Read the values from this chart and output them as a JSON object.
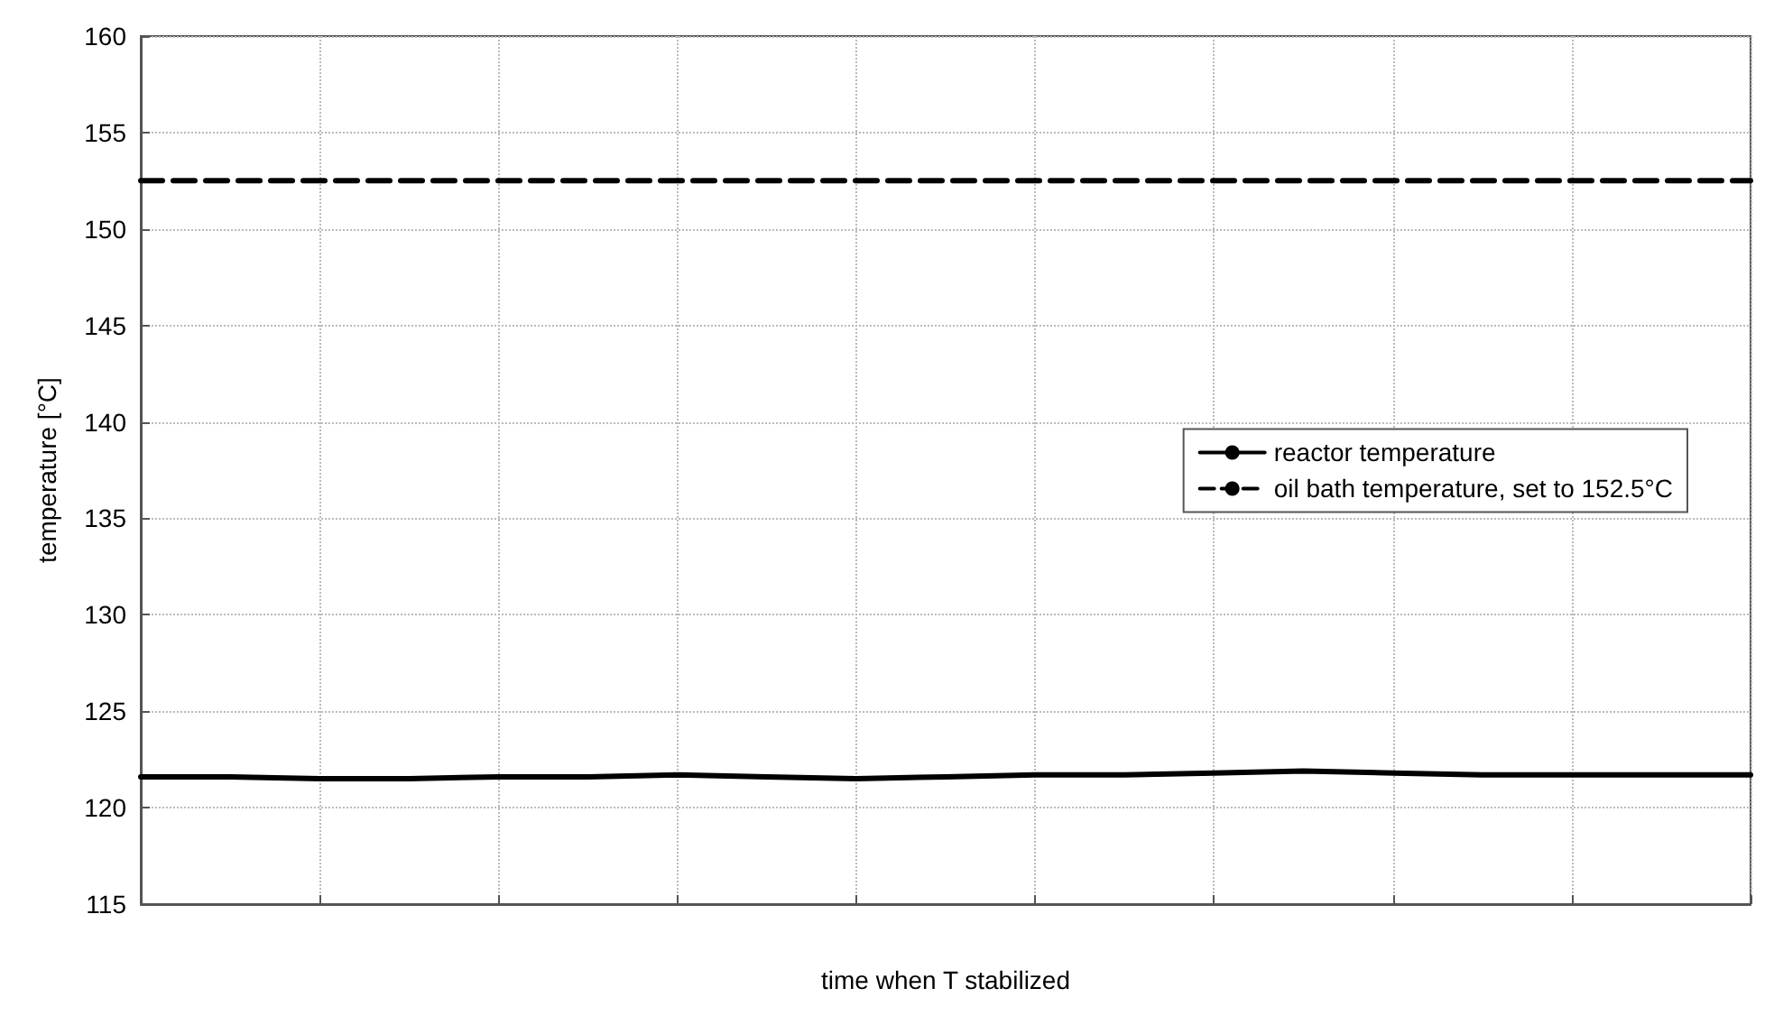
{
  "chart_data": {
    "type": "line",
    "xlabel": "time when T stabilized",
    "ylabel": "temperature [°C]",
    "categories": [
      null,
      null,
      null,
      null,
      null,
      null,
      null,
      null,
      null,
      null,
      null,
      null,
      null,
      null,
      null,
      null,
      null,
      null,
      null
    ],
    "ylim": [
      115,
      160
    ],
    "yticks": [
      115,
      120,
      125,
      130,
      135,
      140,
      145,
      150,
      155,
      160
    ],
    "tick_labels": "y",
    "grid": true,
    "legend": "right",
    "series": [
      {
        "name": "reactor temperature",
        "color": "#000000",
        "line_style": "solid",
        "values": [
          121.6,
          121.6,
          121.5,
          121.5,
          121.6,
          121.6,
          121.7,
          121.6,
          121.5,
          121.6,
          121.7,
          121.7,
          121.8,
          121.9,
          121.8,
          121.7,
          121.7,
          121.7,
          121.7
        ]
      },
      {
        "name": "oil bath temperature, set to 152.5°C",
        "color": "#000000",
        "line_style": "dashed",
        "values": [
          152.5,
          152.5,
          152.5,
          152.5,
          152.5,
          152.5,
          152.5,
          152.5,
          152.5,
          152.5,
          152.5,
          152.5,
          152.5,
          152.5,
          152.5,
          152.5,
          152.5,
          152.5,
          152.5
        ]
      }
    ]
  }
}
